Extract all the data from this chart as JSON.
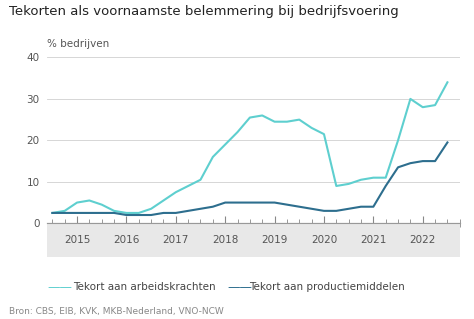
{
  "title": "Tekorten als voornaamste belemmering bij bedrijfsvoering",
  "ylabel": "% bedrijven",
  "source": "Bron: CBS, EIB, KVK, MKB-Nederland, VNO-NCW",
  "ylim": [
    0,
    40
  ],
  "yticks": [
    0,
    10,
    20,
    30,
    40
  ],
  "background_color": "#ffffff",
  "plot_bg": "#ffffff",
  "xaxis_band_color": "#e8e8e8",
  "legend": [
    {
      "label": "Tekort aan arbeidskrachten",
      "color": "#5ecfcf"
    },
    {
      "label": "Tekort aan productiemiddelen",
      "color": "#2d6e8e"
    }
  ],
  "arbeidskrachten": {
    "color": "#5ecfcf",
    "x": [
      2014.5,
      2014.75,
      2015.0,
      2015.25,
      2015.5,
      2015.75,
      2016.0,
      2016.25,
      2016.5,
      2016.75,
      2017.0,
      2017.25,
      2017.5,
      2017.75,
      2018.0,
      2018.25,
      2018.5,
      2018.75,
      2019.0,
      2019.25,
      2019.5,
      2019.75,
      2020.0,
      2020.25,
      2020.5,
      2020.75,
      2021.0,
      2021.25,
      2021.5,
      2021.75,
      2022.0,
      2022.25,
      2022.5
    ],
    "y": [
      2.5,
      3.0,
      5.0,
      5.5,
      4.5,
      3.0,
      2.5,
      2.5,
      3.5,
      5.5,
      7.5,
      9.0,
      10.5,
      16.0,
      19.0,
      22.0,
      25.5,
      26.0,
      24.5,
      24.5,
      25.0,
      23.0,
      21.5,
      9.0,
      9.5,
      10.5,
      11.0,
      11.0,
      20.0,
      30.0,
      28.0,
      28.5,
      34.0
    ]
  },
  "productiemiddelen": {
    "color": "#2d6e8e",
    "x": [
      2014.5,
      2014.75,
      2015.0,
      2015.25,
      2015.5,
      2015.75,
      2016.0,
      2016.25,
      2016.5,
      2016.75,
      2017.0,
      2017.25,
      2017.5,
      2017.75,
      2018.0,
      2018.25,
      2018.5,
      2018.75,
      2019.0,
      2019.25,
      2019.5,
      2019.75,
      2020.0,
      2020.25,
      2020.5,
      2020.75,
      2021.0,
      2021.25,
      2021.5,
      2021.75,
      2022.0,
      2022.25,
      2022.5
    ],
    "y": [
      2.5,
      2.5,
      2.5,
      2.5,
      2.5,
      2.5,
      2.0,
      2.0,
      2.0,
      2.5,
      2.5,
      3.0,
      3.5,
      4.0,
      5.0,
      5.0,
      5.0,
      5.0,
      5.0,
      4.5,
      4.0,
      3.5,
      3.0,
      3.0,
      3.5,
      4.0,
      4.0,
      9.0,
      13.5,
      14.5,
      15.0,
      15.0,
      19.5
    ]
  }
}
